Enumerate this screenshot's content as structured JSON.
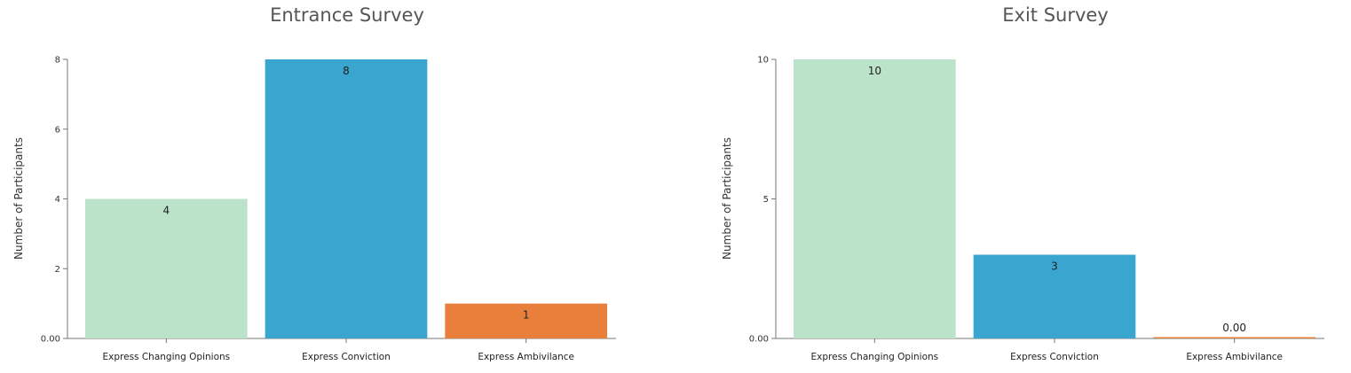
{
  "chart_data": [
    {
      "type": "bar",
      "title": "Entrance Survey",
      "xlabel": "",
      "ylabel": "Number of Participants",
      "categories": [
        "Express Changing Opinions",
        "Express Conviction",
        "Express Ambivilance"
      ],
      "values": [
        4,
        8,
        1
      ],
      "value_labels": [
        "4",
        "8",
        "1"
      ],
      "colors": [
        "#bae3ca",
        "#3aa6d0",
        "#e8803c"
      ],
      "ylim": [
        0,
        8
      ],
      "yticks": [
        0,
        2,
        4,
        6,
        8
      ],
      "ytick_labels": [
        "0.00",
        "2",
        "4",
        "6",
        "8"
      ],
      "grid": false
    },
    {
      "type": "bar",
      "title": "Exit Survey",
      "xlabel": "",
      "ylabel": "Number of Participants",
      "categories": [
        "Express Changing Opinions",
        "Express Conviction",
        "Express Ambivilance"
      ],
      "values": [
        10,
        3,
        0
      ],
      "value_labels": [
        "10",
        "3",
        "0.00"
      ],
      "colors": [
        "#bae3ca",
        "#3aa6d0",
        "#e8803c"
      ],
      "ylim": [
        0,
        10
      ],
      "yticks": [
        0,
        5,
        10
      ],
      "ytick_labels": [
        "0.00",
        "5",
        "10"
      ],
      "grid": false
    }
  ]
}
